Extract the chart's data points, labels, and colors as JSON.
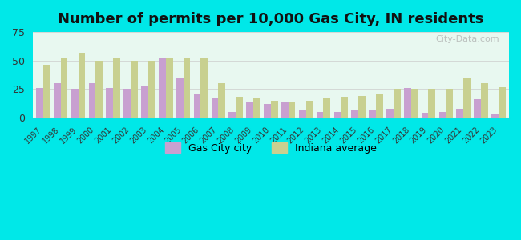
{
  "title": "Number of permits per 10,000 Gas City, IN residents",
  "years": [
    1997,
    1998,
    1999,
    2000,
    2001,
    2002,
    2003,
    2004,
    2005,
    2006,
    2007,
    2008,
    2009,
    2010,
    2011,
    2012,
    2013,
    2014,
    2015,
    2016,
    2017,
    2018,
    2019,
    2020,
    2021,
    2022,
    2023
  ],
  "gas_city": [
    26,
    30,
    25,
    30,
    26,
    25,
    28,
    52,
    35,
    21,
    17,
    5,
    14,
    12,
    14,
    7,
    5,
    5,
    7,
    7,
    8,
    26,
    4,
    5,
    8,
    16,
    3
  ],
  "indiana": [
    46,
    53,
    57,
    50,
    52,
    50,
    50,
    53,
    52,
    52,
    30,
    18,
    17,
    15,
    14,
    15,
    17,
    18,
    19,
    21,
    25,
    25,
    25,
    25,
    35,
    30,
    27
  ],
  "gas_city_color": "#c8a0d0",
  "indiana_color": "#c8d090",
  "bg_color_top": "#e8f8f0",
  "bg_color_bottom": "#f8fff8",
  "outer_bg": "#00e8e8",
  "ylim": [
    0,
    75
  ],
  "yticks": [
    0,
    25,
    50,
    75
  ],
  "legend_gas_city": "Gas City city",
  "legend_indiana": "Indiana average",
  "bar_width": 0.4,
  "title_fontsize": 13
}
